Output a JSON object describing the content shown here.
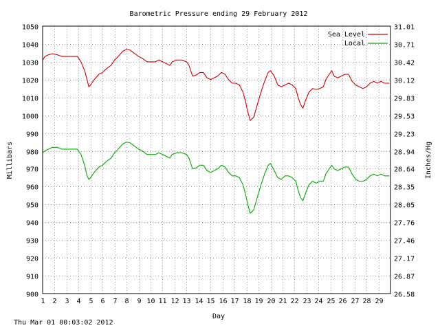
{
  "chart_data": {
    "type": "line",
    "title": "Barometric Pressure ending 29 February 2012",
    "xlabel": "Day",
    "ylabel": "Millibars",
    "ylabel_right": "Inches/Hg",
    "xlim": [
      1,
      30
    ],
    "ylim": [
      900,
      1050
    ],
    "x_ticks": [
      "1",
      "2",
      "3",
      "4",
      "5",
      "6",
      "7",
      "8",
      "9",
      "10",
      "11",
      "12",
      "13",
      "14",
      "15",
      "16",
      "17",
      "18",
      "19",
      "20",
      "21",
      "22",
      "23",
      "24",
      "25",
      "26",
      "27",
      "28",
      "29"
    ],
    "y_ticks": [
      "900",
      "910",
      "920",
      "930",
      "940",
      "950",
      "960",
      "970",
      "980",
      "990",
      "1000",
      "1010",
      "1020",
      "1030",
      "1040",
      "1050"
    ],
    "y_ticks_right": [
      "26.58",
      "26.87",
      "27.17",
      "27.46",
      "27.76",
      "28.05",
      "28.35",
      "28.64",
      "28.94",
      "29.23",
      "29.53",
      "29.83",
      "30.12",
      "30.42",
      "30.71",
      "31.01"
    ],
    "grid": true,
    "legend_position": "top-right",
    "series": [
      {
        "name": "Sea Level",
        "color": "#cc0000",
        "points": [
          [
            1.0,
            1031
          ],
          [
            1.2,
            1033
          ],
          [
            1.5,
            1034
          ],
          [
            1.8,
            1034.5
          ],
          [
            2.2,
            1034
          ],
          [
            2.6,
            1033
          ],
          [
            3.0,
            1033
          ],
          [
            3.5,
            1033
          ],
          [
            3.9,
            1033
          ],
          [
            4.2,
            1030
          ],
          [
            4.5,
            1025
          ],
          [
            4.7,
            1020
          ],
          [
            4.85,
            1016
          ],
          [
            5.0,
            1017
          ],
          [
            5.3,
            1020
          ],
          [
            5.7,
            1023
          ],
          [
            6.0,
            1024
          ],
          [
            6.3,
            1026
          ],
          [
            6.7,
            1028
          ],
          [
            7.0,
            1031
          ],
          [
            7.3,
            1033
          ],
          [
            7.7,
            1036
          ],
          [
            8.0,
            1037
          ],
          [
            8.3,
            1036.5
          ],
          [
            8.6,
            1035
          ],
          [
            9.0,
            1033
          ],
          [
            9.3,
            1032
          ],
          [
            9.7,
            1030
          ],
          [
            10.0,
            1030
          ],
          [
            10.4,
            1030
          ],
          [
            10.7,
            1031
          ],
          [
            11.0,
            1030
          ],
          [
            11.3,
            1029
          ],
          [
            11.6,
            1028
          ],
          [
            11.8,
            1030
          ],
          [
            12.2,
            1031
          ],
          [
            12.6,
            1031
          ],
          [
            13.0,
            1030
          ],
          [
            13.2,
            1028
          ],
          [
            13.5,
            1022
          ],
          [
            13.8,
            1022.5
          ],
          [
            14.1,
            1024
          ],
          [
            14.4,
            1024
          ],
          [
            14.7,
            1021
          ],
          [
            15.0,
            1020
          ],
          [
            15.3,
            1021
          ],
          [
            15.6,
            1022
          ],
          [
            15.9,
            1024
          ],
          [
            16.2,
            1023
          ],
          [
            16.5,
            1020
          ],
          [
            16.8,
            1018
          ],
          [
            17.1,
            1018
          ],
          [
            17.4,
            1017
          ],
          [
            17.7,
            1013
          ],
          [
            17.9,
            1008
          ],
          [
            18.1,
            1002
          ],
          [
            18.3,
            997
          ],
          [
            18.6,
            999
          ],
          [
            18.9,
            1006
          ],
          [
            19.2,
            1013
          ],
          [
            19.5,
            1019
          ],
          [
            19.8,
            1024
          ],
          [
            20.0,
            1025
          ],
          [
            20.3,
            1022
          ],
          [
            20.6,
            1017
          ],
          [
            20.9,
            1016
          ],
          [
            21.2,
            1017
          ],
          [
            21.5,
            1018
          ],
          [
            21.8,
            1017
          ],
          [
            22.1,
            1015
          ],
          [
            22.3,
            1010
          ],
          [
            22.5,
            1006
          ],
          [
            22.7,
            1004
          ],
          [
            22.9,
            1008
          ],
          [
            23.2,
            1013
          ],
          [
            23.5,
            1015
          ],
          [
            23.8,
            1014.5
          ],
          [
            24.1,
            1015
          ],
          [
            24.4,
            1016
          ],
          [
            24.6,
            1020
          ],
          [
            24.9,
            1023
          ],
          [
            25.1,
            1025
          ],
          [
            25.3,
            1022
          ],
          [
            25.6,
            1021
          ],
          [
            25.9,
            1022
          ],
          [
            26.2,
            1023
          ],
          [
            26.5,
            1023
          ],
          [
            26.8,
            1019
          ],
          [
            27.1,
            1017
          ],
          [
            27.4,
            1016
          ],
          [
            27.7,
            1015
          ],
          [
            28.0,
            1016
          ],
          [
            28.3,
            1018
          ],
          [
            28.6,
            1019
          ],
          [
            28.9,
            1018
          ],
          [
            29.2,
            1019
          ],
          [
            29.5,
            1018
          ],
          [
            29.9,
            1018
          ]
        ]
      },
      {
        "name": "Local",
        "color": "#00aa00",
        "points": [
          [
            1.0,
            979
          ],
          [
            1.2,
            980
          ],
          [
            1.5,
            981
          ],
          [
            1.8,
            982
          ],
          [
            2.2,
            982
          ],
          [
            2.6,
            981
          ],
          [
            3.0,
            981
          ],
          [
            3.5,
            981
          ],
          [
            3.9,
            981
          ],
          [
            4.2,
            978
          ],
          [
            4.5,
            972
          ],
          [
            4.7,
            966
          ],
          [
            4.85,
            964
          ],
          [
            5.0,
            965
          ],
          [
            5.3,
            968
          ],
          [
            5.7,
            971
          ],
          [
            6.0,
            972
          ],
          [
            6.3,
            974
          ],
          [
            6.7,
            976
          ],
          [
            7.0,
            979
          ],
          [
            7.3,
            981
          ],
          [
            7.7,
            984
          ],
          [
            8.0,
            985
          ],
          [
            8.3,
            984.5
          ],
          [
            8.6,
            983
          ],
          [
            9.0,
            981
          ],
          [
            9.3,
            980
          ],
          [
            9.7,
            978
          ],
          [
            10.0,
            978
          ],
          [
            10.4,
            978
          ],
          [
            10.7,
            979
          ],
          [
            11.0,
            978
          ],
          [
            11.3,
            977
          ],
          [
            11.6,
            976
          ],
          [
            11.8,
            978
          ],
          [
            12.2,
            979
          ],
          [
            12.6,
            979
          ],
          [
            13.0,
            978
          ],
          [
            13.2,
            976
          ],
          [
            13.5,
            970
          ],
          [
            13.8,
            970.5
          ],
          [
            14.1,
            972
          ],
          [
            14.4,
            972
          ],
          [
            14.7,
            969
          ],
          [
            15.0,
            968
          ],
          [
            15.3,
            969
          ],
          [
            15.6,
            970
          ],
          [
            15.9,
            972
          ],
          [
            16.2,
            971
          ],
          [
            16.5,
            968
          ],
          [
            16.8,
            966
          ],
          [
            17.1,
            966
          ],
          [
            17.4,
            965
          ],
          [
            17.7,
            961
          ],
          [
            17.9,
            956
          ],
          [
            18.1,
            950
          ],
          [
            18.3,
            945
          ],
          [
            18.6,
            947
          ],
          [
            18.9,
            954
          ],
          [
            19.2,
            961
          ],
          [
            19.5,
            967
          ],
          [
            19.8,
            972
          ],
          [
            20.0,
            973
          ],
          [
            20.3,
            969
          ],
          [
            20.6,
            965
          ],
          [
            20.9,
            964
          ],
          [
            21.2,
            966
          ],
          [
            21.5,
            966
          ],
          [
            21.8,
            965
          ],
          [
            22.1,
            963
          ],
          [
            22.3,
            958
          ],
          [
            22.5,
            954
          ],
          [
            22.7,
            952
          ],
          [
            22.9,
            956
          ],
          [
            23.2,
            961
          ],
          [
            23.5,
            963
          ],
          [
            23.8,
            962
          ],
          [
            24.1,
            963
          ],
          [
            24.4,
            963
          ],
          [
            24.6,
            967
          ],
          [
            24.9,
            970
          ],
          [
            25.1,
            972
          ],
          [
            25.3,
            970
          ],
          [
            25.6,
            969
          ],
          [
            25.9,
            970
          ],
          [
            26.2,
            971
          ],
          [
            26.5,
            971
          ],
          [
            26.8,
            967
          ],
          [
            27.1,
            964
          ],
          [
            27.4,
            963
          ],
          [
            27.7,
            963
          ],
          [
            28.0,
            964
          ],
          [
            28.3,
            966
          ],
          [
            28.6,
            967
          ],
          [
            28.9,
            966
          ],
          [
            29.2,
            967
          ],
          [
            29.5,
            966
          ],
          [
            29.9,
            966
          ]
        ]
      }
    ]
  },
  "footer": {
    "timestamp": "Thu Mar 01 00:03:02 2012"
  }
}
